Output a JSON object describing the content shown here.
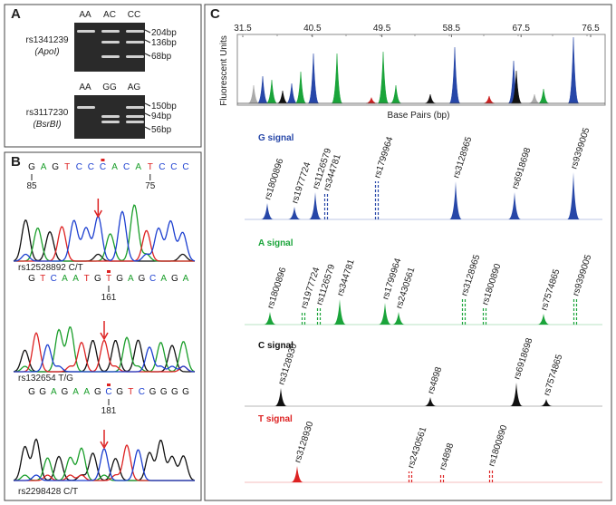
{
  "panels": {
    "A": {
      "label": "A",
      "gels": [
        {
          "lanes": [
            "AA",
            "AC",
            "CC"
          ],
          "sizes": [
            "204bp",
            "136bp",
            "68bp"
          ],
          "snp": "rs1341239",
          "enzyme": "(ApoI)"
        },
        {
          "lanes": [
            "AA",
            "GG",
            "AG"
          ],
          "sizes": [
            "150bp",
            "94bp",
            "56bp"
          ],
          "snp": "rs3117230",
          "enzyme": "(BsrBI)"
        }
      ]
    },
    "B": {
      "label": "B",
      "traces": [
        {
          "sequence": [
            "G",
            "A",
            "G",
            "T",
            "C",
            "C",
            "C",
            "A",
            "C",
            "A",
            "T",
            "C",
            "C",
            "C"
          ],
          "positions": [
            85,
            75
          ],
          "snp": "rs12528892 C/T"
        },
        {
          "sequence": [
            "G",
            "T",
            "C",
            "A",
            "A",
            "T",
            "G",
            "T",
            "G",
            "A",
            "G",
            "C",
            "A",
            "G",
            "A"
          ],
          "positions": [
            161
          ],
          "snp": "rs132654 T/G"
        },
        {
          "sequence": [
            "G",
            "G",
            "A",
            "G",
            "A",
            "A",
            "G",
            "C",
            "G",
            "T",
            "C",
            "G",
            "G",
            "G",
            "G"
          ],
          "positions": [
            181
          ],
          "snp": "rs2298428 C/T"
        }
      ]
    },
    "C": {
      "label": "C",
      "y_axis": "Fluorescent Units",
      "x_axis": "Base Pairs (bp)",
      "ticks": [
        31.5,
        40.5,
        49.5,
        58.5,
        67.5,
        76.5
      ],
      "signals": [
        {
          "name": "G signal",
          "snps": [
            "rs1800896",
            "rs1977724",
            "rs1126579",
            "rs344781",
            "rs1799964",
            "rs3128965",
            "rs6918698",
            "rs9399005"
          ]
        },
        {
          "name": "A signal",
          "snps": [
            "rs1800896",
            "rs1977724",
            "rs1126579",
            "rs344781",
            "rs1799964",
            "rs2430561",
            "rs3128965",
            "rs1800890",
            "rs7574865",
            "rs9399005"
          ]
        },
        {
          "name": "C signal",
          "snps": [
            "rs3128930",
            "rs4898",
            "rs6918698",
            "rs7574865"
          ]
        },
        {
          "name": "T signal",
          "snps": [
            "rs3128930",
            "rs2430561",
            "rs4898",
            "rs1800890"
          ]
        }
      ]
    }
  }
}
